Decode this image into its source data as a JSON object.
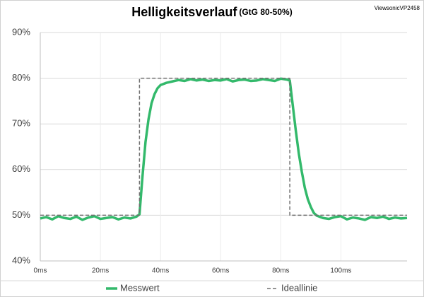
{
  "chart_data": {
    "type": "line",
    "title": "Helligkeitsverlauf",
    "subtitle": "(GtG 80-50%)",
    "annotation": "ViewsonicVP2458",
    "xlim": [
      0,
      122
    ],
    "xticks": [
      {
        "value": 0,
        "label": "0ms"
      },
      {
        "value": 20,
        "label": "20ms"
      },
      {
        "value": 40,
        "label": "40ms"
      },
      {
        "value": 60,
        "label": "60ms"
      },
      {
        "value": 80,
        "label": "80ms"
      },
      {
        "value": 100,
        "label": "100ms"
      }
    ],
    "ylim": [
      40,
      90
    ],
    "yticks": [
      {
        "value": 40,
        "label": "40%"
      },
      {
        "value": 50,
        "label": "50%"
      },
      {
        "value": 60,
        "label": "60%"
      },
      {
        "value": 70,
        "label": "70%"
      },
      {
        "value": 80,
        "label": "80%"
      },
      {
        "value": 90,
        "label": "90%"
      }
    ],
    "grid": true,
    "legend": "bottom",
    "series": [
      {
        "name": "Messwert",
        "color": "#33b96b",
        "line_style": "solid",
        "x": [
          0,
          2,
          4,
          6,
          8,
          10,
          12,
          14,
          16,
          18,
          20,
          22,
          24,
          26,
          28,
          30,
          32,
          33,
          34,
          35,
          36,
          37,
          38,
          39,
          40,
          42,
          44,
          46,
          48,
          50,
          52,
          54,
          56,
          58,
          60,
          62,
          64,
          66,
          68,
          70,
          72,
          74,
          76,
          78,
          80,
          82,
          83,
          84,
          85,
          86,
          87,
          88,
          89,
          90,
          91,
          92,
          94,
          96,
          98,
          100,
          102,
          104,
          106,
          108,
          110,
          112,
          114,
          116,
          118,
          120,
          122
        ],
        "values": [
          49.3,
          49.6,
          49.1,
          49.8,
          49.4,
          49.2,
          49.7,
          49.0,
          49.5,
          49.8,
          49.2,
          49.4,
          49.6,
          49.1,
          49.5,
          49.3,
          49.7,
          50.2,
          58.5,
          66.0,
          71.0,
          74.5,
          76.5,
          77.8,
          78.5,
          79.0,
          79.3,
          79.6,
          79.4,
          79.8,
          79.5,
          79.7,
          79.4,
          79.6,
          79.5,
          79.8,
          79.3,
          79.6,
          79.7,
          79.4,
          79.5,
          79.8,
          79.6,
          79.4,
          79.9,
          79.7,
          79.5,
          74.0,
          68.5,
          63.5,
          59.5,
          56.0,
          53.5,
          51.8,
          50.5,
          49.9,
          49.4,
          49.2,
          49.6,
          49.8,
          49.1,
          49.5,
          49.3,
          49.0,
          49.6,
          49.4,
          49.7,
          49.2,
          49.5,
          49.3,
          49.4
        ]
      },
      {
        "name": "Ideallinie",
        "color": "#707070",
        "line_style": "dashed",
        "x": [
          0,
          33,
          33,
          83,
          83,
          122
        ],
        "values": [
          50,
          50,
          80,
          80,
          50,
          50
        ]
      }
    ]
  }
}
